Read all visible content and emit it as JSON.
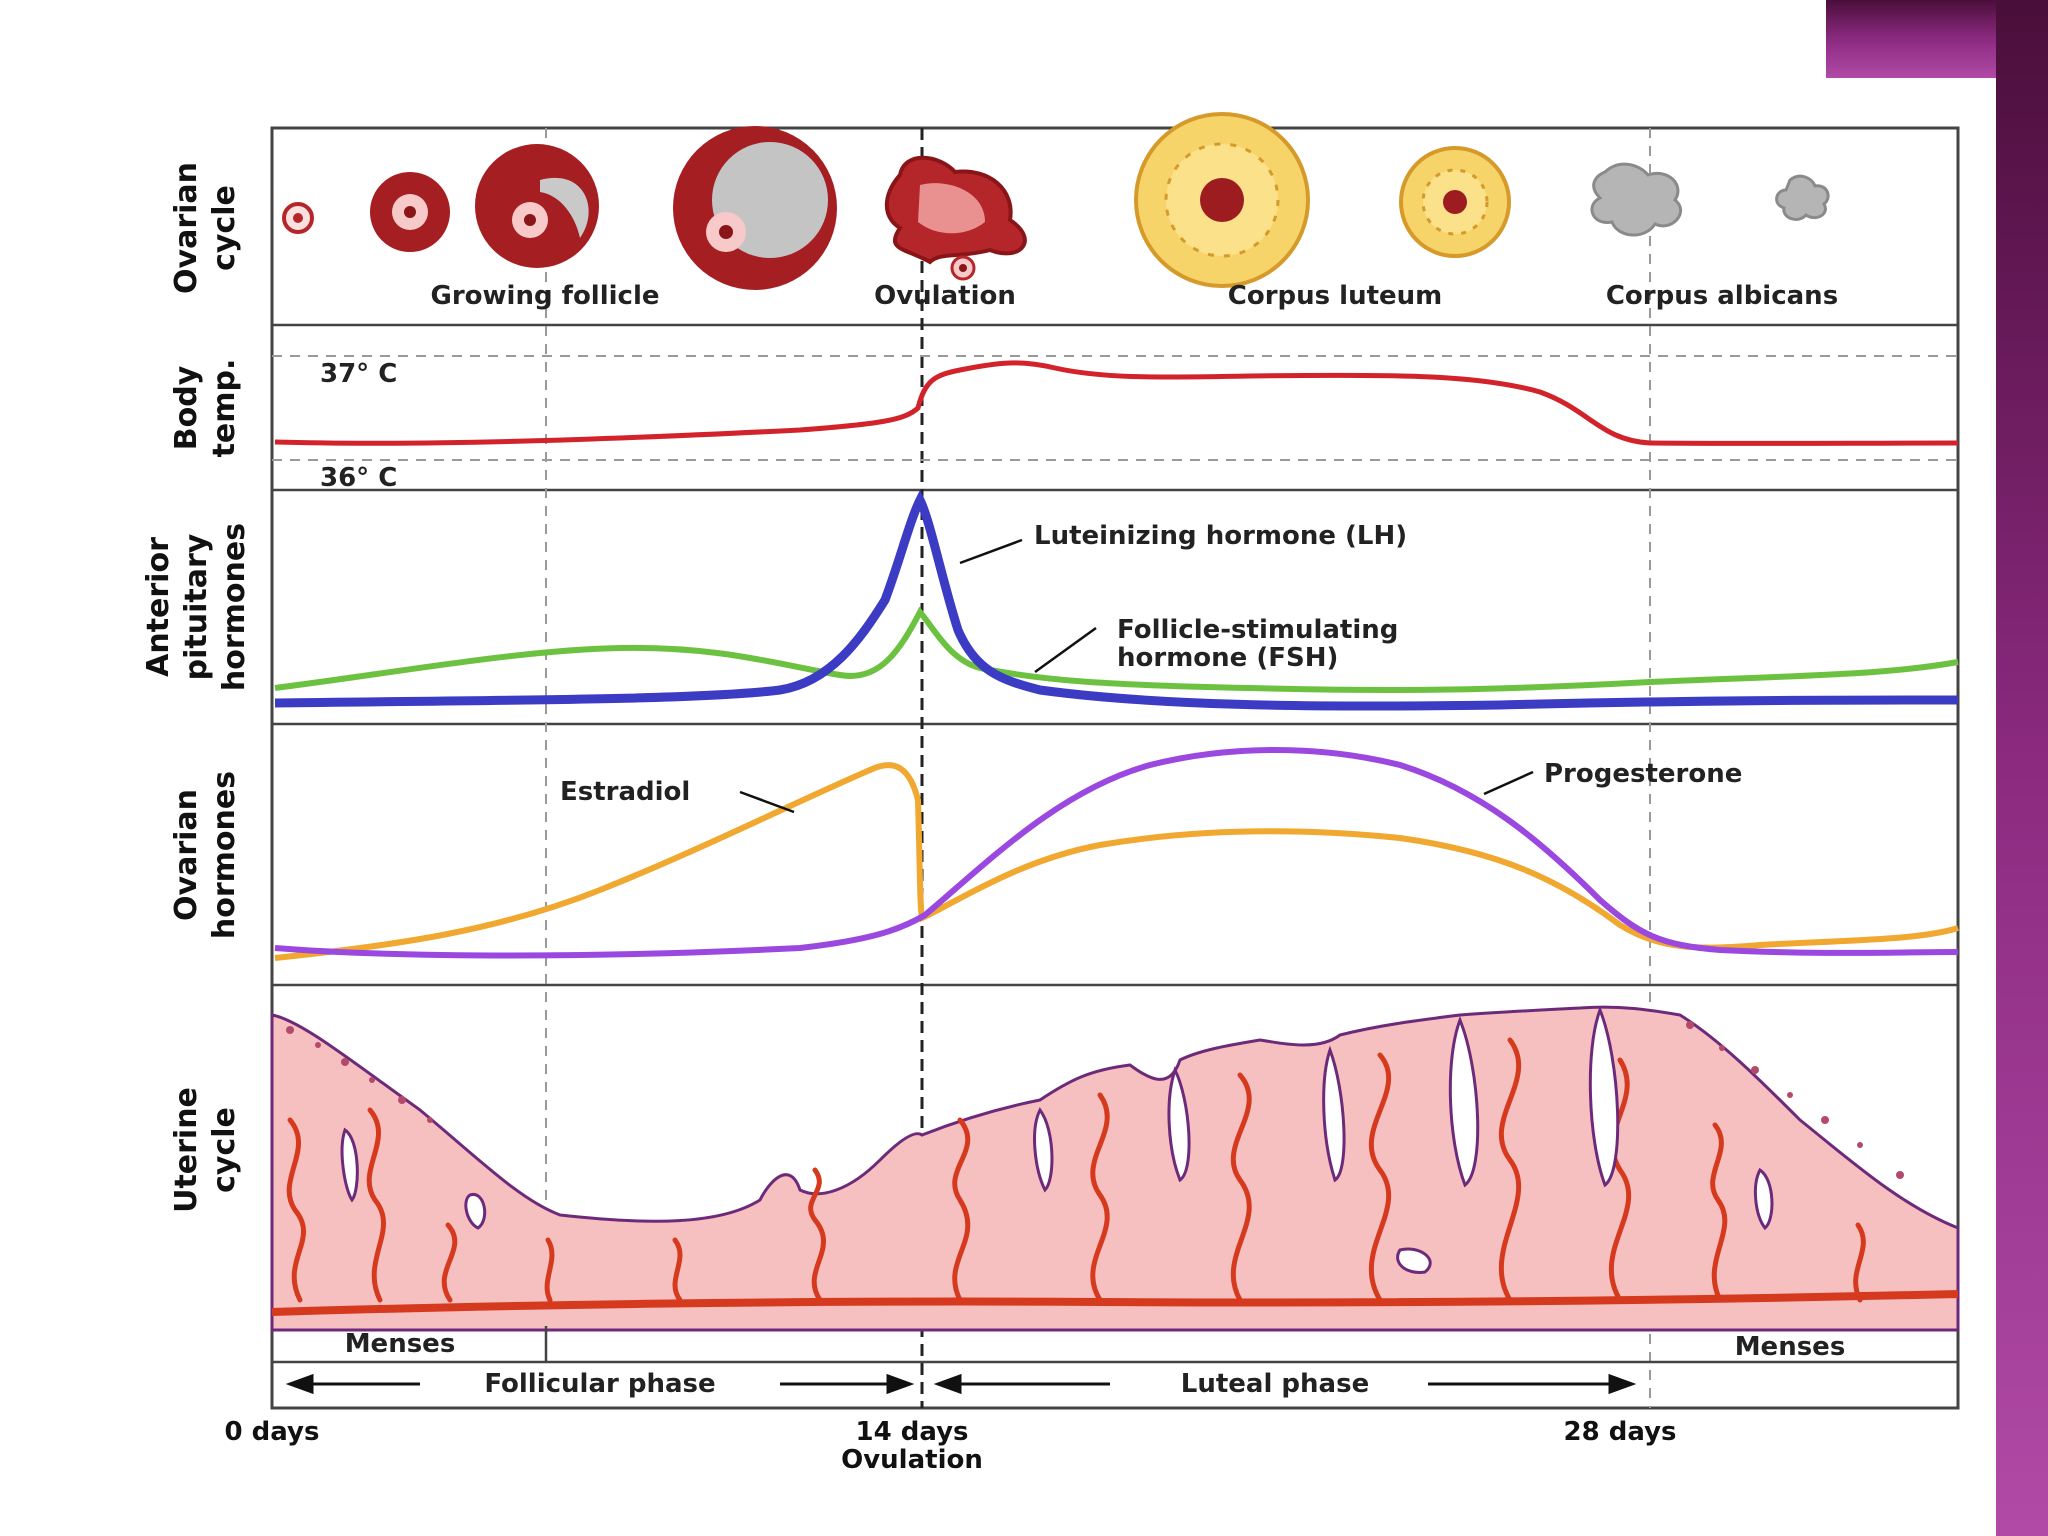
{
  "rows": {
    "ovarian_cycle": {
      "label_lines": [
        "Ovarian",
        "cycle"
      ],
      "stages": [
        "Growing follicle",
        "Ovulation",
        "Corpus luteum",
        "Corpus albicans"
      ]
    },
    "body_temp": {
      "label_lines": [
        "Body",
        "temp."
      ],
      "high": "37° C",
      "low": "36° C"
    },
    "pituitary": {
      "label_lines": [
        "Anterior",
        "pituitary",
        "hormones"
      ],
      "lh_label": "Luteinizing hormone (LH)",
      "fsh_label_lines": [
        "Follicle-stimulating",
        "hormone (FSH)"
      ]
    },
    "ovarian_hormones": {
      "label_lines": [
        "Ovarian",
        "hormones"
      ],
      "estradiol": "Estradiol",
      "progesterone": "Progesterone"
    },
    "uterine_cycle": {
      "label_lines": [
        "Uterine",
        "cycle"
      ]
    }
  },
  "phases": {
    "menses_left": "Menses",
    "menses_right": "Menses",
    "follicular": "Follicular phase",
    "luteal": "Luteal phase"
  },
  "axis": {
    "day0": "0 days",
    "day14_lines": [
      "14 days",
      "Ovulation"
    ],
    "day28": "28 days"
  },
  "colors": {
    "lh": "#3b3bc4",
    "fsh": "#6cc240",
    "estradiol": "#f0a830",
    "progesterone": "#9b48e0",
    "temperature": "#d2232a",
    "endometrium": "#f7c0c0",
    "vessels": "#d63a1e",
    "slide_accent": "#8c2a80"
  }
}
